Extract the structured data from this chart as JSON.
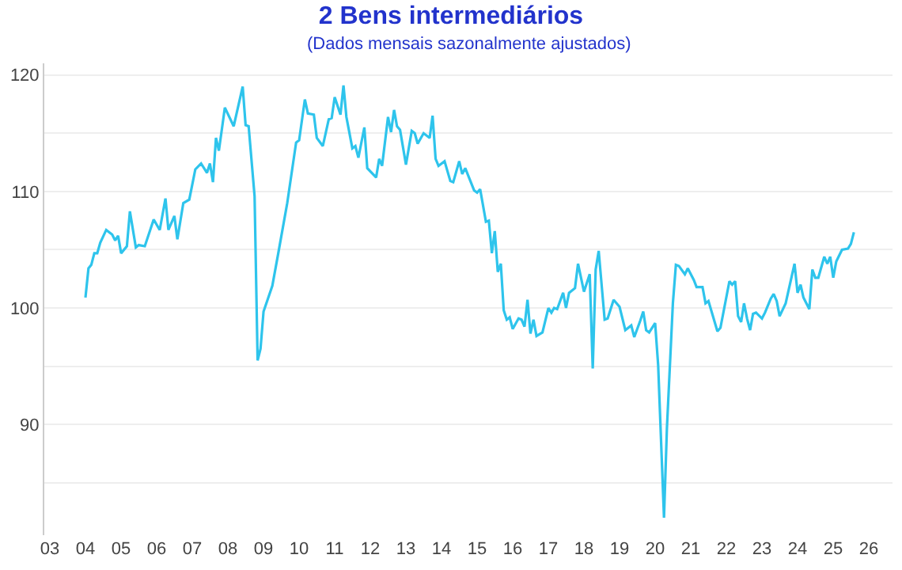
{
  "chart_data": {
    "type": "line",
    "title": "2 Bens intermediários",
    "subtitle": "(Dados mensais sazonalmente ajustados)",
    "x": [
      "2004-01",
      "2004-02",
      "2004-03",
      "2004-04",
      "2004-05",
      "2004-06",
      "2004-08",
      "2004-10",
      "2004-11",
      "2004-12",
      "2005-01",
      "2005-03",
      "2005-04",
      "2005-06",
      "2005-07",
      "2005-09",
      "2005-12",
      "2006-02",
      "2006-04",
      "2006-05",
      "2006-07",
      "2006-08",
      "2006-10",
      "2006-12",
      "2007-02",
      "2007-04",
      "2007-06",
      "2007-07",
      "2007-08",
      "2007-09",
      "2007-10",
      "2007-12",
      "2008-03",
      "2008-06",
      "2008-07",
      "2008-08",
      "2008-10",
      "2008-11",
      "2008-12",
      "2009-01",
      "2009-04",
      "2009-06",
      "2009-09",
      "2009-12",
      "2010-01",
      "2010-03",
      "2010-04",
      "2010-06",
      "2010-07",
      "2010-09",
      "2010-11",
      "2010-12",
      "2011-01",
      "2011-03",
      "2011-04",
      "2011-05",
      "2011-07",
      "2011-08",
      "2011-09",
      "2011-11",
      "2011-12",
      "2012-03",
      "2012-04",
      "2012-05",
      "2012-07",
      "2012-08",
      "2012-09",
      "2012-10",
      "2012-11",
      "2013-01",
      "2013-03",
      "2013-04",
      "2013-05",
      "2013-07",
      "2013-09",
      "2013-10",
      "2013-11",
      "2013-12",
      "2014-02",
      "2014-04",
      "2014-05",
      "2014-07",
      "2014-08",
      "2014-09",
      "2014-12",
      "2015-01",
      "2015-02",
      "2015-04",
      "2015-05",
      "2015-06",
      "2015-07",
      "2015-08",
      "2015-09",
      "2015-10",
      "2015-11",
      "2015-12",
      "2016-01",
      "2016-03",
      "2016-04",
      "2016-05",
      "2016-06",
      "2016-07",
      "2016-08",
      "2016-09",
      "2016-11",
      "2017-01",
      "2017-02",
      "2017-03",
      "2017-04",
      "2017-06",
      "2017-07",
      "2017-08",
      "2017-10",
      "2017-11",
      "2018-01",
      "2018-03",
      "2018-04",
      "2018-05",
      "2018-06",
      "2018-08",
      "2018-09",
      "2018-11",
      "2019-01",
      "2019-03",
      "2019-05",
      "2019-06",
      "2019-08",
      "2019-09",
      "2019-10",
      "2019-11",
      "2020-01",
      "2020-02",
      "2020-04",
      "2020-05",
      "2020-07",
      "2020-08",
      "2020-09",
      "2020-11",
      "2020-12",
      "2021-02",
      "2021-03",
      "2021-05",
      "2021-06",
      "2021-07",
      "2021-10",
      "2021-11",
      "2022-02",
      "2022-03",
      "2022-04",
      "2022-05",
      "2022-06",
      "2022-07",
      "2022-08",
      "2022-09",
      "2022-10",
      "2022-11",
      "2023-01",
      "2023-02",
      "2023-04",
      "2023-05",
      "2023-06",
      "2023-07",
      "2023-09",
      "2023-12",
      "2024-01",
      "2024-02",
      "2024-03",
      "2024-05",
      "2024-06",
      "2024-07",
      "2024-08",
      "2024-10",
      "2024-11",
      "2024-12",
      "2025-01",
      "2025-02",
      "2025-04",
      "2025-06",
      "2025-07",
      "2025-08"
    ],
    "series": [
      {
        "color": "#2ec4ec",
        "values": [
          100.9,
          103.4,
          103.7,
          104.7,
          104.7,
          105.6,
          106.7,
          106.3,
          105.8,
          106.2,
          104.7,
          105.3,
          108.3,
          105.2,
          105.4,
          105.3,
          107.6,
          106.7,
          109.4,
          106.7,
          107.9,
          105.9,
          109.0,
          109.3,
          111.9,
          112.4,
          111.6,
          112.4,
          110.8,
          114.6,
          113.5,
          117.2,
          115.6,
          119.0,
          115.7,
          115.6,
          109.6,
          95.5,
          96.5,
          99.7,
          101.9,
          104.7,
          109.0,
          114.2,
          114.4,
          117.9,
          116.7,
          116.6,
          114.6,
          113.9,
          116.2,
          116.3,
          118.1,
          116.6,
          119.1,
          116.4,
          113.7,
          113.9,
          112.9,
          115.5,
          112.0,
          111.2,
          112.8,
          112.2,
          116.4,
          115.1,
          117.0,
          115.6,
          115.3,
          112.3,
          115.2,
          115.0,
          114.1,
          115.0,
          114.6,
          116.5,
          112.8,
          112.2,
          112.6,
          110.9,
          110.8,
          112.6,
          111.5,
          112.0,
          110.1,
          109.9,
          110.2,
          107.4,
          107.5,
          104.7,
          106.6,
          103.1,
          103.8,
          99.8,
          99.0,
          99.2,
          98.2,
          99.1,
          99.0,
          98.4,
          100.7,
          97.8,
          99.0,
          97.6,
          97.9,
          100.0,
          99.6,
          100.0,
          99.9,
          101.3,
          100.0,
          101.3,
          101.7,
          103.8,
          101.4,
          102.9,
          94.8,
          103.3,
          104.9,
          99.0,
          99.1,
          100.7,
          100.1,
          98.1,
          98.5,
          97.5,
          98.9,
          99.7,
          98.1,
          97.9,
          98.7,
          95.1,
          82.0,
          89.7,
          100.4,
          103.7,
          103.6,
          102.9,
          103.4,
          102.4,
          101.8,
          101.8,
          100.4,
          100.6,
          98.0,
          98.3,
          102.3,
          102.0,
          102.3,
          99.3,
          98.8,
          100.4,
          99.1,
          98.1,
          99.5,
          99.6,
          99.1,
          99.6,
          100.8,
          101.2,
          100.6,
          99.3,
          100.4,
          103.8,
          101.3,
          102.0,
          100.9,
          99.9,
          103.3,
          102.6,
          102.6,
          104.4,
          103.8,
          104.4,
          102.6,
          104.0,
          105.0,
          105.1,
          105.5,
          106.5
        ]
      }
    ],
    "xlim": [
      "2002-11-05",
      "2026-09-01"
    ],
    "xticks": [
      {
        "value": "2003-01-01",
        "label": "03"
      },
      {
        "value": "2004-01-01",
        "label": "04"
      },
      {
        "value": "2005-01-01",
        "label": "05"
      },
      {
        "value": "2006-01-01",
        "label": "06"
      },
      {
        "value": "2007-01-01",
        "label": "07"
      },
      {
        "value": "2008-01-01",
        "label": "08"
      },
      {
        "value": "2009-01-01",
        "label": "09"
      },
      {
        "value": "2010-01-01",
        "label": "10"
      },
      {
        "value": "2011-01-01",
        "label": "11"
      },
      {
        "value": "2012-01-01",
        "label": "12"
      },
      {
        "value": "2013-01-01",
        "label": "13"
      },
      {
        "value": "2014-01-01",
        "label": "14"
      },
      {
        "value": "2015-01-01",
        "label": "15"
      },
      {
        "value": "2016-01-01",
        "label": "16"
      },
      {
        "value": "2017-01-01",
        "label": "17"
      },
      {
        "value": "2018-01-01",
        "label": "18"
      },
      {
        "value": "2019-01-01",
        "label": "19"
      },
      {
        "value": "2020-01-01",
        "label": "20"
      },
      {
        "value": "2021-01-01",
        "label": "21"
      },
      {
        "value": "2022-01-01",
        "label": "22"
      },
      {
        "value": "2023-01-01",
        "label": "23"
      },
      {
        "value": "2024-01-01",
        "label": "24"
      },
      {
        "value": "2025-01-01",
        "label": "25"
      },
      {
        "value": "2026-01-01",
        "label": "26"
      }
    ],
    "ylim": [
      80.5,
      121
    ],
    "yticks": [
      {
        "value": 85,
        "label": null
      },
      90,
      {
        "value": 95,
        "label": null
      },
      100,
      {
        "value": 105,
        "label": null
      },
      110,
      {
        "value": 115,
        "label": null
      },
      120
    ],
    "grid": "y",
    "marker": "none",
    "line_style": "solid"
  }
}
